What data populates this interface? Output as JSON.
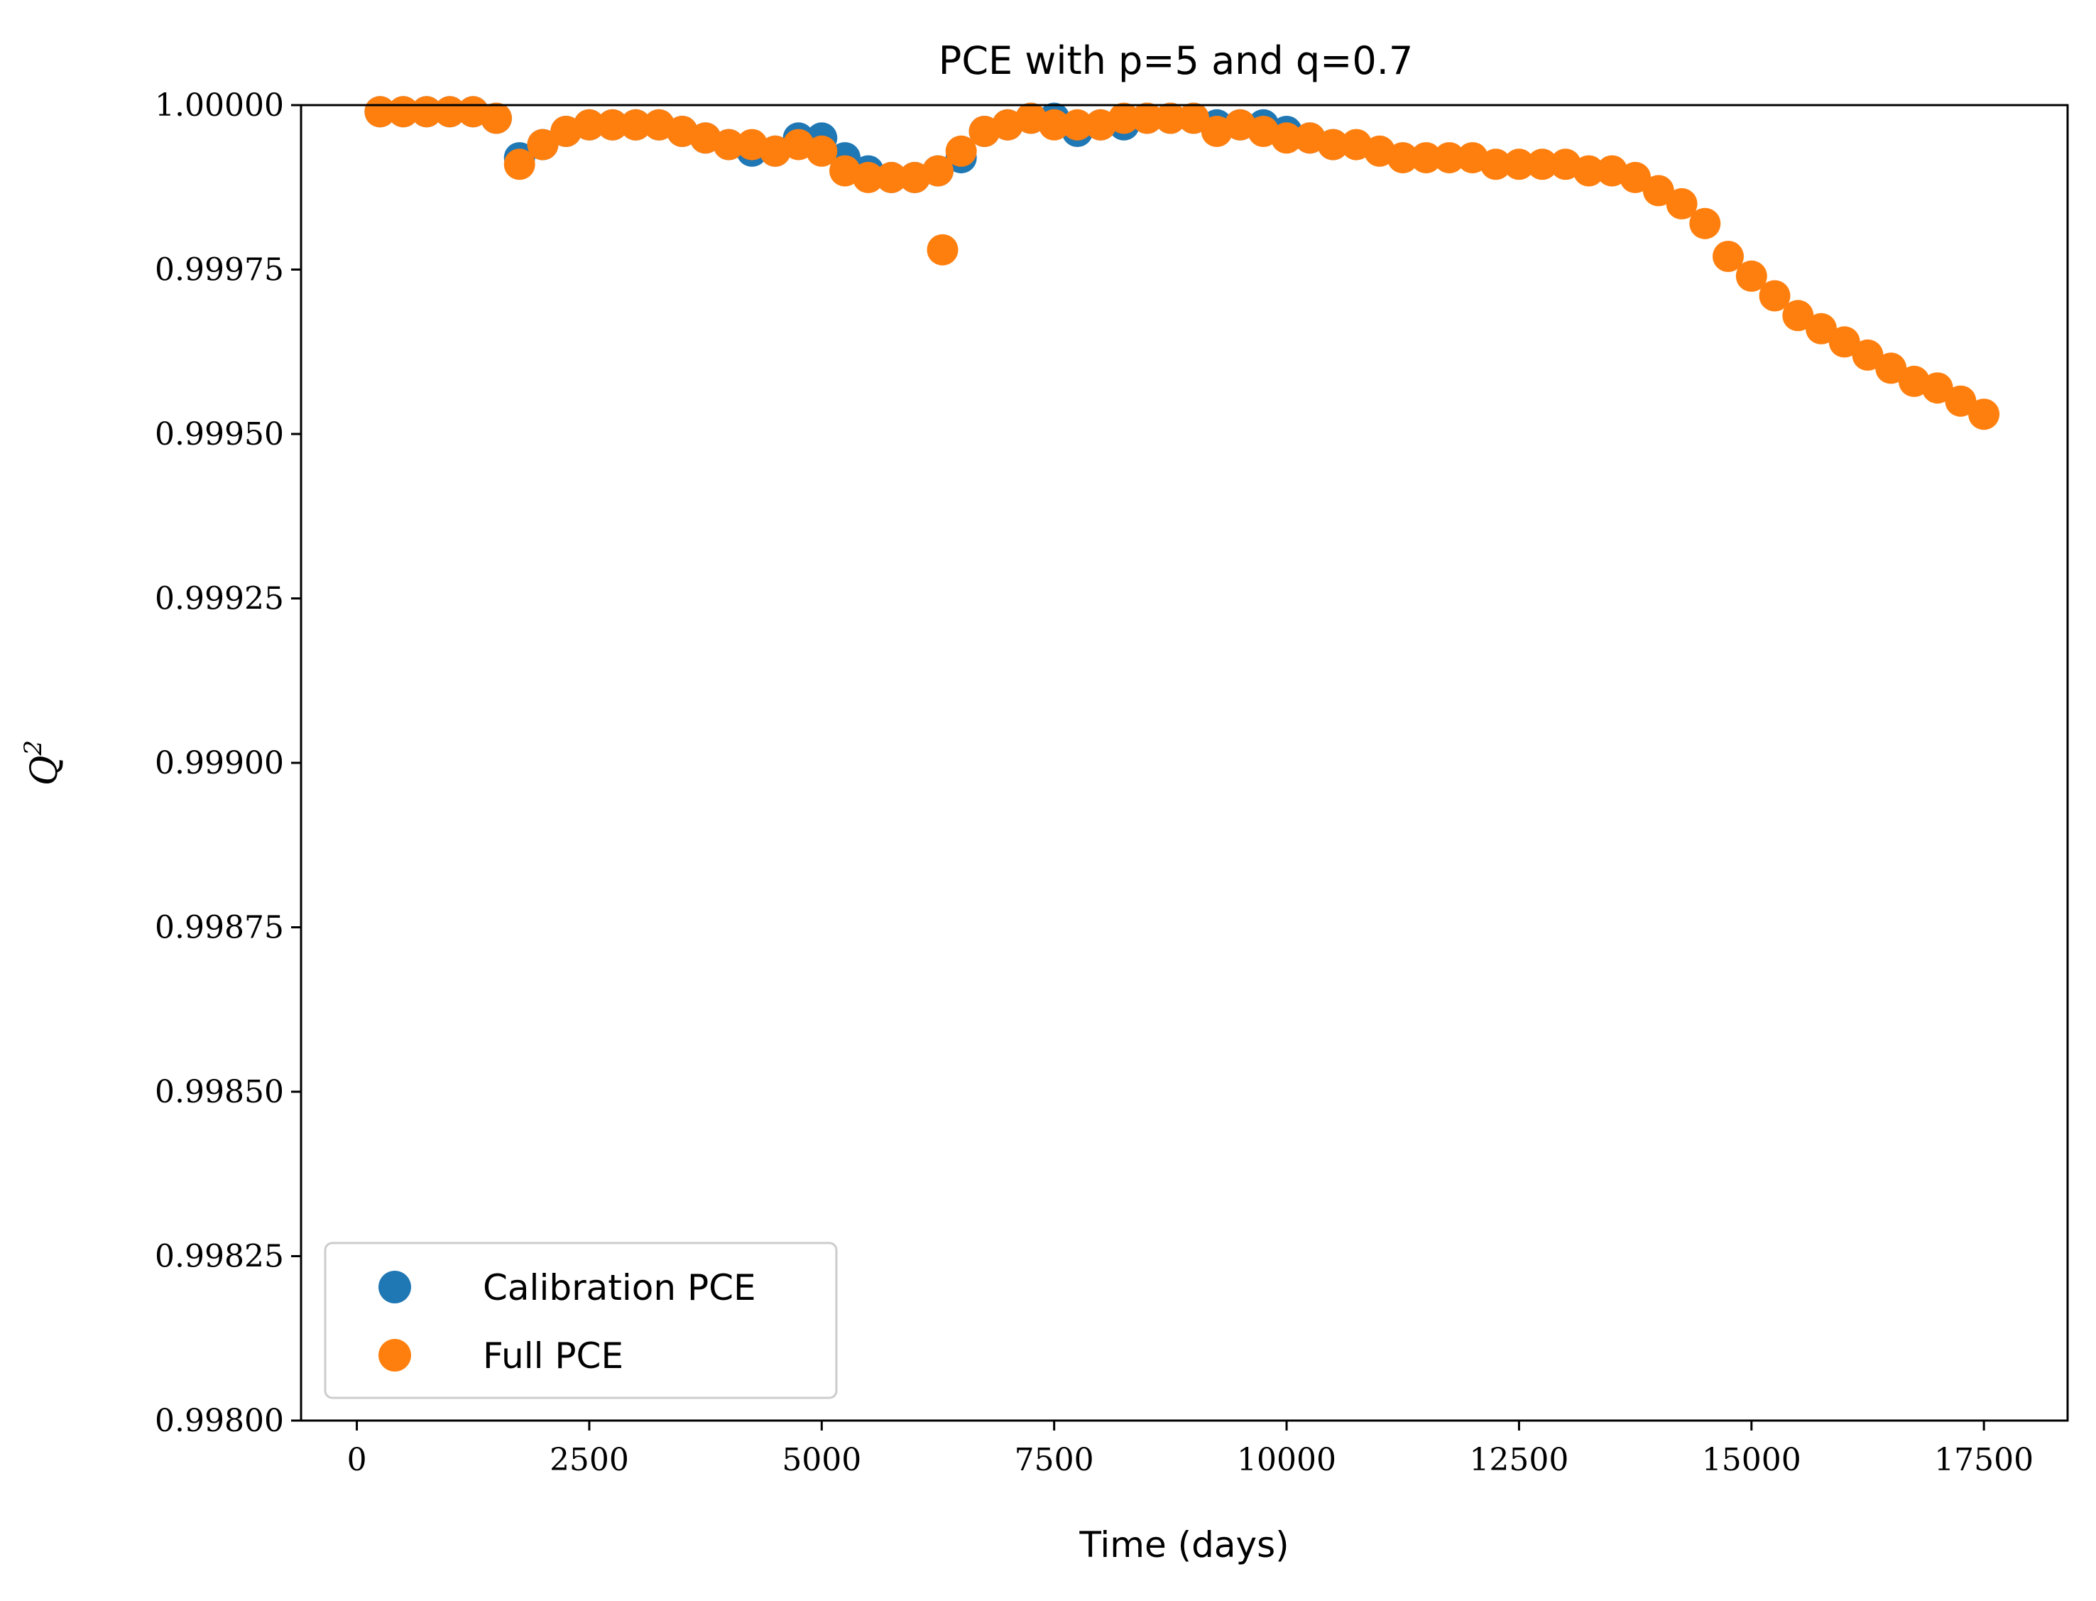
{
  "chart_data": {
    "type": "scatter",
    "title": "PCE with p=5 and q=0.7",
    "xlabel": "Time (days)",
    "ylabel": "Q",
    "ylabel_superscript": "2",
    "xlim": [
      -600,
      18400
    ],
    "ylim": [
      0.998,
      1.0
    ],
    "xticks": [
      0,
      2500,
      5000,
      7500,
      10000,
      12500,
      15000,
      17500
    ],
    "xtick_labels": [
      "0",
      "2500",
      "5000",
      "7500",
      "10000",
      "12500",
      "15000",
      "17500"
    ],
    "yticks": [
      0.998,
      0.99825,
      0.9985,
      0.99875,
      0.999,
      0.99925,
      0.9995,
      0.99975,
      1.0
    ],
    "ytick_labels": [
      "0.99800",
      "0.99825",
      "0.99850",
      "0.99875",
      "0.99900",
      "0.99925",
      "0.99950",
      "0.99975",
      "1.00000"
    ],
    "grid": false,
    "legend_position": "lower-left",
    "series": [
      {
        "name": "Calibration PCE",
        "color": "#1f77b4",
        "x": [
          250,
          500,
          750,
          1000,
          1250,
          1500,
          1750,
          2000,
          2250,
          2500,
          2750,
          3000,
          3250,
          3500,
          3750,
          4000,
          4250,
          4500,
          4750,
          5000,
          5250,
          5500,
          5750,
          6000,
          6250,
          6500,
          6750,
          7000,
          7250,
          7500,
          7750,
          8000,
          8250,
          8500,
          8750,
          9000,
          9250,
          9500,
          9750,
          10000,
          10250,
          10500
        ],
        "y": [
          0.99999,
          0.99999,
          0.99999,
          0.99999,
          0.99999,
          0.99998,
          0.99992,
          0.99994,
          0.99996,
          0.99997,
          0.99997,
          0.99997,
          0.99997,
          0.99996,
          0.99995,
          0.99994,
          0.99993,
          0.99993,
          0.99995,
          0.99995,
          0.99992,
          0.9999,
          0.99989,
          0.99989,
          0.9999,
          0.99992,
          0.99996,
          0.99997,
          0.99998,
          0.99998,
          0.99996,
          0.99997,
          0.99997,
          0.99998,
          0.99998,
          0.99998,
          0.99997,
          0.99997,
          0.99997,
          0.99996,
          0.99995,
          0.99994
        ]
      },
      {
        "name": "Full PCE",
        "color": "#ff7f0e",
        "x": [
          250,
          500,
          750,
          1000,
          1250,
          1500,
          1750,
          2000,
          2250,
          2500,
          2750,
          3000,
          3250,
          3500,
          3750,
          4000,
          4250,
          4500,
          4750,
          5000,
          5250,
          5500,
          5750,
          6000,
          6250,
          6300,
          6500,
          6750,
          7000,
          7250,
          7500,
          7750,
          8000,
          8250,
          8500,
          8750,
          9000,
          9250,
          9500,
          9750,
          10000,
          10250,
          10500,
          10750,
          11000,
          11250,
          11500,
          11750,
          12000,
          12250,
          12500,
          12750,
          13000,
          13250,
          13500,
          13750,
          14000,
          14250,
          14500,
          14750,
          15000,
          15250,
          15500,
          15750,
          16000,
          16250,
          16500,
          16750,
          17000,
          17250,
          17500
        ],
        "y": [
          0.99999,
          0.99999,
          0.99999,
          0.99999,
          0.99999,
          0.99998,
          0.99991,
          0.99994,
          0.99996,
          0.99997,
          0.99997,
          0.99997,
          0.99997,
          0.99996,
          0.99995,
          0.99994,
          0.99994,
          0.99993,
          0.99994,
          0.99993,
          0.9999,
          0.99989,
          0.99989,
          0.99989,
          0.9999,
          0.99978,
          0.99993,
          0.99996,
          0.99997,
          0.99998,
          0.99997,
          0.99997,
          0.99997,
          0.99998,
          0.99998,
          0.99998,
          0.99998,
          0.99996,
          0.99997,
          0.99996,
          0.99995,
          0.99995,
          0.99994,
          0.99994,
          0.99993,
          0.99992,
          0.99992,
          0.99992,
          0.99992,
          0.99991,
          0.99991,
          0.99991,
          0.99991,
          0.9999,
          0.9999,
          0.99989,
          0.99987,
          0.99985,
          0.99982,
          0.99977,
          0.99974,
          0.99971,
          0.99968,
          0.99966,
          0.99964,
          0.99962,
          0.9996,
          0.99958,
          0.99957,
          0.99955,
          0.99953
        ]
      }
    ]
  }
}
